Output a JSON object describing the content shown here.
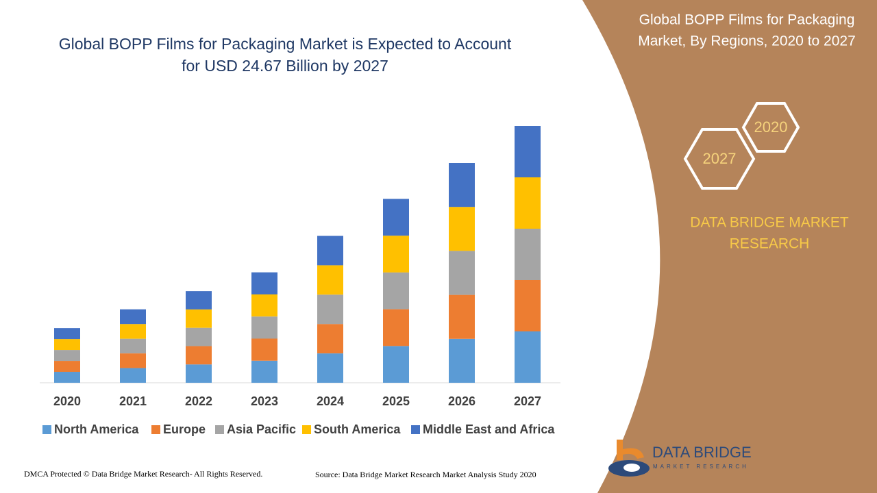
{
  "chart_data": {
    "type": "bar",
    "stacked": true,
    "title": [
      "Global BOPP Films for Packaging Market is Expected to Account",
      "for USD 24.67 Billion by 2027"
    ],
    "categories": [
      "2020",
      "2021",
      "2022",
      "2023",
      "2024",
      "2025",
      "2026",
      "2027"
    ],
    "series": [
      {
        "name": "North America",
        "color": "#5b9bd5",
        "values": [
          1.05,
          1.41,
          1.76,
          2.12,
          2.82,
          3.53,
          4.22,
          4.93
        ]
      },
      {
        "name": "Europe",
        "color": "#ed7d31",
        "values": [
          1.05,
          1.41,
          1.76,
          2.12,
          2.82,
          3.53,
          4.22,
          4.93
        ]
      },
      {
        "name": "Asia Pacific",
        "color": "#a5a5a5",
        "values": [
          1.05,
          1.41,
          1.76,
          2.12,
          2.82,
          3.53,
          4.22,
          4.93
        ]
      },
      {
        "name": "South America",
        "color": "#ffc000",
        "values": [
          1.05,
          1.41,
          1.76,
          2.12,
          2.82,
          3.53,
          4.22,
          4.93
        ]
      },
      {
        "name": "Middle East and Africa",
        "color": "#4472c4",
        "values": [
          1.05,
          1.41,
          1.76,
          2.12,
          2.82,
          3.53,
          4.22,
          4.93
        ]
      }
    ]
  },
  "panel": {
    "title": [
      "Global BOPP Films for Packaging",
      "Market, By Regions, 2020 to 2027"
    ],
    "hex_labels": [
      "2020",
      "2027"
    ],
    "brand": [
      "DATA BRIDGE MARKET",
      "RESEARCH"
    ]
  },
  "logo": {
    "name": "DATA BRIDGE",
    "tagline": "MARKET RESEARCH"
  },
  "footer": {
    "left": "DMCA Protected © Data Bridge Market Research- All Rights Reserved.",
    "right": "Source: Data Bridge Market Research Market Analysis Study 2020"
  }
}
